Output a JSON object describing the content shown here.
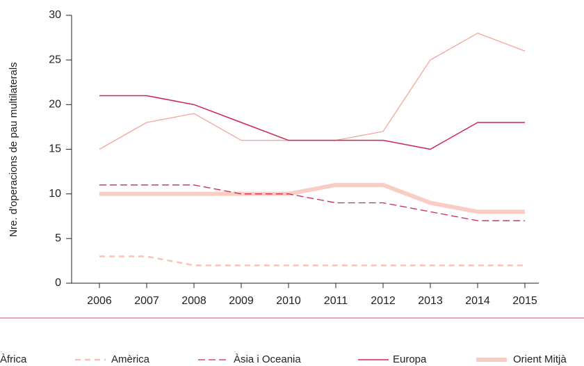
{
  "chart_data": {
    "type": "line",
    "ylabel": "Nre. d'operacions de pau multilaterals",
    "categories": [
      "2006",
      "2007",
      "2008",
      "2009",
      "2010",
      "2011",
      "2012",
      "2013",
      "2014",
      "2015"
    ],
    "ylim": [
      0,
      30
    ],
    "yticks": [
      0,
      5,
      10,
      15,
      20,
      25,
      30
    ],
    "series": [
      {
        "name": "Àfrica",
        "color": "#f2a79c",
        "line_style": "solid",
        "line_width": 1.3,
        "values": [
          15,
          18,
          19,
          16,
          16,
          16,
          17,
          25,
          28,
          26
        ]
      },
      {
        "name": "Amèrica",
        "color": "#f8c2b6",
        "line_style": "dashed",
        "line_width": 2.5,
        "values": [
          3,
          3,
          2,
          2,
          2,
          2,
          2,
          2,
          2,
          2
        ]
      },
      {
        "name": "Àsia i Oceania",
        "color": "#cf2550",
        "line_style": "dashed",
        "line_width": 1.3,
        "values": [
          11,
          11,
          11,
          10,
          10,
          9,
          9,
          8,
          7,
          7
        ]
      },
      {
        "name": "Europa",
        "color": "#cf2550",
        "line_style": "solid",
        "line_width": 1.5,
        "values": [
          21,
          21,
          20,
          18,
          16,
          16,
          16,
          15,
          18,
          18
        ]
      },
      {
        "name": "Orient Mitjà",
        "color": "#f8cdc3",
        "line_style": "solid",
        "line_width": 6,
        "values": [
          10,
          10,
          10,
          10,
          10,
          11,
          11,
          9,
          8,
          8
        ]
      }
    ]
  }
}
